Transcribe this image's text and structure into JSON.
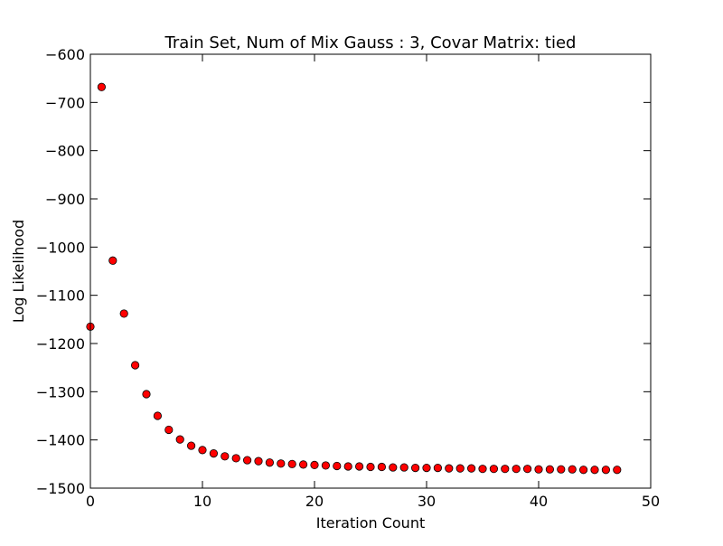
{
  "chart_data": {
    "type": "scatter",
    "title": "Train Set, Num of Mix Gauss : 3, Covar Matrix: tied",
    "xlabel": "Iteration Count",
    "ylabel": "Log Likelihood",
    "xlim": [
      0,
      50
    ],
    "ylim": [
      -1500,
      -600
    ],
    "grid": false,
    "xticks": [
      0,
      10,
      20,
      30,
      40,
      50
    ],
    "xtick_labels": [
      "0",
      "10",
      "20",
      "30",
      "40",
      "50"
    ],
    "yticks": [
      -600,
      -700,
      -800,
      -900,
      -1000,
      -1100,
      -1200,
      -1300,
      -1400,
      -1500
    ],
    "ytick_labels": [
      "−600",
      "−700",
      "−800",
      "−900",
      "−1000",
      "−1100",
      "−1200",
      "−1300",
      "−1400",
      "−1500"
    ],
    "marker_color": "#ff0000",
    "marker_edge_color": "#000000",
    "series": [
      {
        "x": [
          0,
          1,
          2,
          3,
          4,
          5,
          6,
          7,
          8,
          9,
          10,
          11,
          12,
          13,
          14,
          15,
          16,
          17,
          18,
          19,
          20,
          21,
          22,
          23,
          24,
          25,
          26,
          27,
          28,
          29,
          30,
          31,
          32,
          33,
          34,
          35,
          36,
          37,
          38,
          39,
          40,
          41,
          42,
          43,
          44,
          45,
          46,
          47
        ],
        "y": [
          -1165,
          -668,
          -1028,
          -1138,
          -1245,
          -1305,
          -1350,
          -1379,
          -1399,
          -1412,
          -1421,
          -1428,
          -1434,
          -1438,
          -1442,
          -1444,
          -1447,
          -1449,
          -1450,
          -1451,
          -1452,
          -1453,
          -1454,
          -1455,
          -1455,
          -1456,
          -1456,
          -1457,
          -1457,
          -1458,
          -1458,
          -1458,
          -1459,
          -1459,
          -1459,
          -1460,
          -1460,
          -1460,
          -1460,
          -1460,
          -1461,
          -1461,
          -1461,
          -1461,
          -1462,
          -1462,
          -1462,
          -1462
        ]
      }
    ]
  }
}
